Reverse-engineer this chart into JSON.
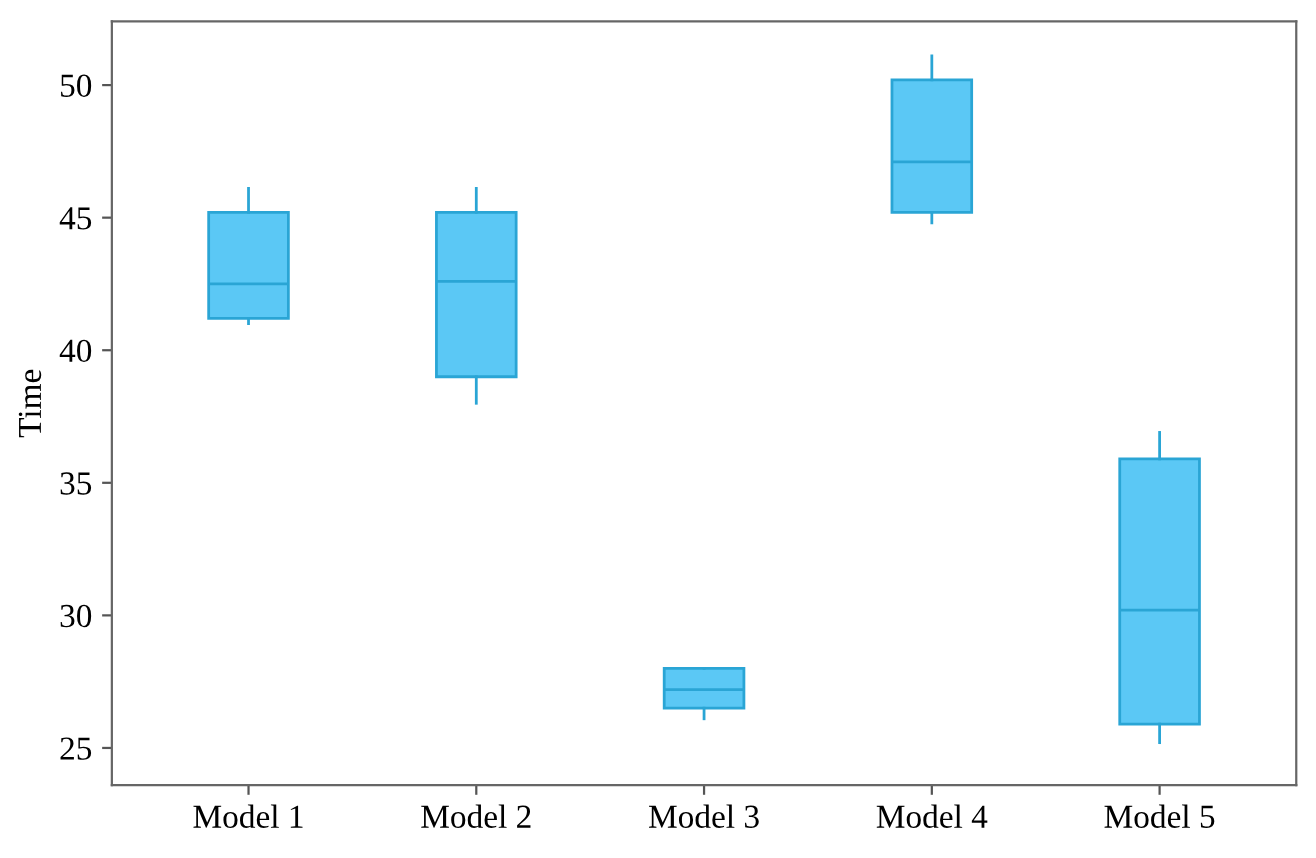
{
  "chart_data": {
    "type": "box",
    "ylabel": "Time",
    "categories": [
      "Model 1",
      "Model 2",
      "Model 3",
      "Model 4",
      "Model 5"
    ],
    "boxes": [
      {
        "low": 41,
        "q1": 41.2,
        "median": 42.5,
        "q3": 45.2,
        "high": 46.1
      },
      {
        "low": 38,
        "q1": 39,
        "median": 42.6,
        "q3": 45.2,
        "high": 46.1
      },
      {
        "low": 26.1,
        "q1": 26.5,
        "median": 27.2,
        "q3": 28,
        "high": 28
      },
      {
        "low": 44.8,
        "q1": 45.2,
        "median": 47.1,
        "q3": 50.2,
        "high": 51.1
      },
      {
        "low": 25.2,
        "q1": 25.9,
        "median": 30.2,
        "q3": 35.9,
        "high": 36.9
      }
    ],
    "color": "#5bc8f5",
    "ylim": [
      23.6,
      52.4
    ],
    "yticks": [
      25,
      30,
      35,
      40,
      45,
      50
    ],
    "grid": false
  }
}
